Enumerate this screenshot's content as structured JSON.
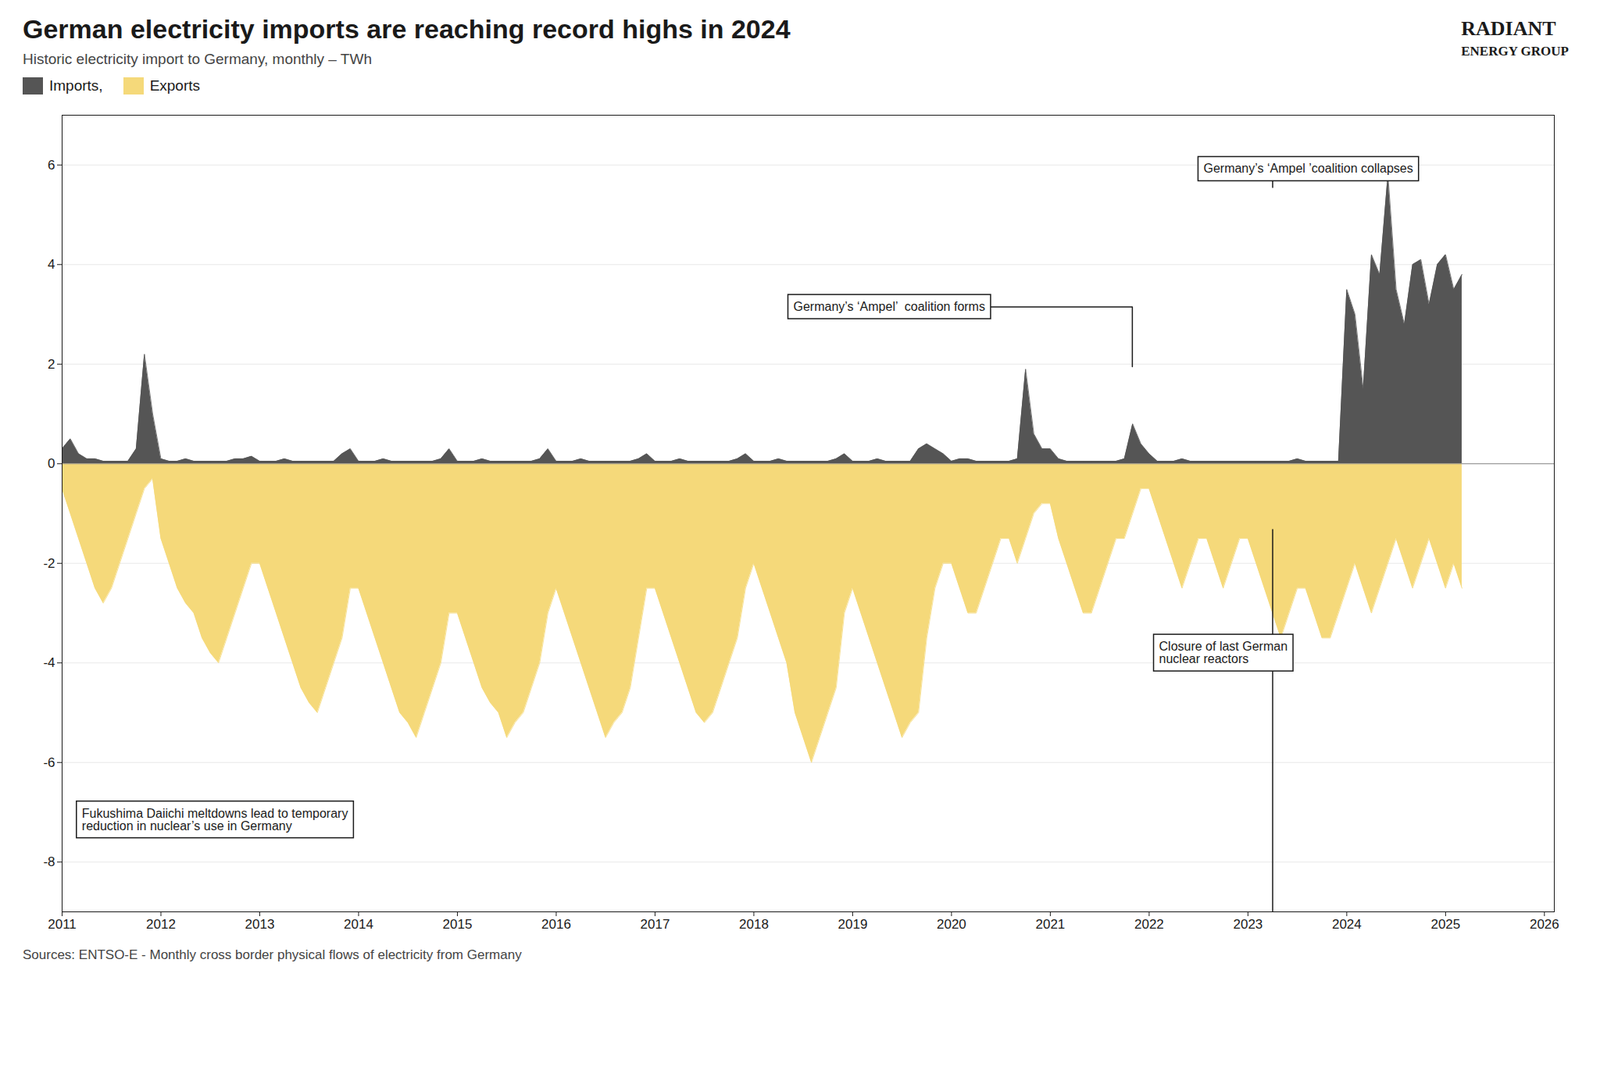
{
  "chart_data": {
    "type": "area",
    "title": "German electricity imports are reaching record highs in 2024",
    "subtitle": "Historic electricity import to Germany, monthly – TWh",
    "source": "Sources: ENTSO-E - Monthly cross border physical flows of electricity from Germany",
    "branding": [
      "RADIANT",
      "ENERGY GROUP"
    ],
    "legend": "top-left",
    "grid": "y",
    "xlim": [
      2011,
      2026.1
    ],
    "xticks": [
      2011,
      2012,
      2013,
      2014,
      2015,
      2016,
      2017,
      2018,
      2019,
      2020,
      2021,
      2022,
      2023,
      2024,
      2025,
      2026
    ],
    "ylim": [
      -9,
      7
    ],
    "yticks": [
      -8,
      -6,
      -4,
      -2,
      0,
      2,
      4,
      6
    ],
    "x": [
      2011,
      2011.0833,
      2011.1667,
      2011.25,
      2011.3333,
      2011.4167,
      2011.5,
      2011.5833,
      2011.6667,
      2011.75,
      2011.8333,
      2011.9167,
      2012,
      2012.0833,
      2012.1667,
      2012.25,
      2012.3333,
      2012.4167,
      2012.5,
      2012.5833,
      2012.6667,
      2012.75,
      2012.8333,
      2012.9167,
      2013,
      2013.0833,
      2013.1667,
      2013.25,
      2013.3333,
      2013.4167,
      2013.5,
      2013.5833,
      2013.6667,
      2013.75,
      2013.8333,
      2013.9167,
      2014,
      2014.0833,
      2014.1667,
      2014.25,
      2014.3333,
      2014.4167,
      2014.5,
      2014.5833,
      2014.6667,
      2014.75,
      2014.8333,
      2014.9167,
      2015,
      2015.0833,
      2015.1667,
      2015.25,
      2015.3333,
      2015.4167,
      2015.5,
      2015.5833,
      2015.6667,
      2015.75,
      2015.8333,
      2015.9167,
      2016,
      2016.0833,
      2016.1667,
      2016.25,
      2016.3333,
      2016.4167,
      2016.5,
      2016.5833,
      2016.6667,
      2016.75,
      2016.8333,
      2016.9167,
      2017,
      2017.0833,
      2017.1667,
      2017.25,
      2017.3333,
      2017.4167,
      2017.5,
      2017.5833,
      2017.6667,
      2017.75,
      2017.8333,
      2017.9167,
      2018,
      2018.0833,
      2018.1667,
      2018.25,
      2018.3333,
      2018.4167,
      2018.5,
      2018.5833,
      2018.6667,
      2018.75,
      2018.8333,
      2018.9167,
      2019,
      2019.0833,
      2019.1667,
      2019.25,
      2019.3333,
      2019.4167,
      2019.5,
      2019.5833,
      2019.6667,
      2019.75,
      2019.8333,
      2019.9167,
      2020,
      2020.0833,
      2020.1667,
      2020.25,
      2020.3333,
      2020.4167,
      2020.5,
      2020.5833,
      2020.6667,
      2020.75,
      2020.8333,
      2020.9167,
      2021,
      2021.0833,
      2021.1667,
      2021.25,
      2021.3333,
      2021.4167,
      2021.5,
      2021.5833,
      2021.6667,
      2021.75,
      2021.8333,
      2021.9167,
      2022,
      2022.0833,
      2022.1667,
      2022.25,
      2022.3333,
      2022.4167,
      2022.5,
      2022.5833,
      2022.6667,
      2022.75,
      2022.8333,
      2022.9167,
      2023,
      2023.0833,
      2023.1667,
      2023.25,
      2023.3333,
      2023.4167,
      2023.5,
      2023.5833,
      2023.6667,
      2023.75,
      2023.8333,
      2023.9167,
      2024,
      2024.0833,
      2024.1667,
      2024.25,
      2024.3333,
      2024.4167,
      2024.5,
      2024.5833,
      2024.6667,
      2024.75,
      2024.8333,
      2024.9167,
      2025,
      2025.0833,
      2025.1667
    ],
    "series": [
      {
        "name": "Imports,",
        "color": "#555555",
        "values": [
          0.3,
          0.5,
          0.2,
          0.1,
          0.1,
          0.05,
          0.05,
          0.05,
          0.05,
          0.3,
          2.2,
          1.0,
          0.1,
          0.05,
          0.05,
          0.1,
          0.05,
          0.05,
          0.05,
          0.05,
          0.05,
          0.1,
          0.1,
          0.15,
          0.05,
          0.05,
          0.05,
          0.1,
          0.05,
          0.05,
          0.05,
          0.05,
          0.05,
          0.05,
          0.2,
          0.3,
          0.05,
          0.05,
          0.05,
          0.1,
          0.05,
          0.05,
          0.05,
          0.05,
          0.05,
          0.05,
          0.1,
          0.3,
          0.05,
          0.05,
          0.05,
          0.1,
          0.05,
          0.05,
          0.05,
          0.05,
          0.05,
          0.05,
          0.1,
          0.3,
          0.05,
          0.05,
          0.05,
          0.1,
          0.05,
          0.05,
          0.05,
          0.05,
          0.05,
          0.05,
          0.1,
          0.2,
          0.05,
          0.05,
          0.05,
          0.1,
          0.05,
          0.05,
          0.05,
          0.05,
          0.05,
          0.05,
          0.1,
          0.2,
          0.05,
          0.05,
          0.05,
          0.1,
          0.05,
          0.05,
          0.05,
          0.05,
          0.05,
          0.05,
          0.1,
          0.2,
          0.05,
          0.05,
          0.05,
          0.1,
          0.05,
          0.05,
          0.05,
          0.05,
          0.3,
          0.4,
          0.3,
          0.2,
          0.05,
          0.1,
          0.1,
          0.05,
          0.05,
          0.05,
          0.05,
          0.05,
          0.1,
          1.9,
          0.6,
          0.3,
          0.3,
          0.1,
          0.05,
          0.05,
          0.05,
          0.05,
          0.05,
          0.05,
          0.05,
          0.1,
          0.8,
          0.4,
          0.2,
          0.05,
          0.05,
          0.05,
          0.1,
          0.05,
          0.05,
          0.05,
          0.05,
          0.05,
          0.05,
          0.05,
          0.05,
          0.05,
          0.05,
          0.05,
          0.05,
          0.05,
          0.1,
          0.05,
          0.05,
          0.05,
          0.05,
          0.05,
          3.5,
          3.0,
          1.5,
          4.2,
          3.8,
          5.8,
          3.5,
          2.8,
          4.0,
          4.1,
          3.2,
          4.0,
          4.2,
          3.5,
          3.8
        ]
      },
      {
        "name": "Exports",
        "color": "#f5d97a",
        "values": [
          -0.5,
          -1.0,
          -1.5,
          -2.0,
          -2.5,
          -2.8,
          -2.5,
          -2.0,
          -1.5,
          -1.0,
          -0.5,
          -0.3,
          -1.5,
          -2.0,
          -2.5,
          -2.8,
          -3.0,
          -3.5,
          -3.8,
          -4.0,
          -3.5,
          -3.0,
          -2.5,
          -2.0,
          -2.0,
          -2.5,
          -3.0,
          -3.5,
          -4.0,
          -4.5,
          -4.8,
          -5.0,
          -4.5,
          -4.0,
          -3.5,
          -2.5,
          -2.5,
          -3.0,
          -3.5,
          -4.0,
          -4.5,
          -5.0,
          -5.2,
          -5.5,
          -5.0,
          -4.5,
          -4.0,
          -3.0,
          -3.0,
          -3.5,
          -4.0,
          -4.5,
          -4.8,
          -5.0,
          -5.5,
          -5.2,
          -5.0,
          -4.5,
          -4.0,
          -3.0,
          -2.5,
          -3.0,
          -3.5,
          -4.0,
          -4.5,
          -5.0,
          -5.5,
          -5.2,
          -5.0,
          -4.5,
          -3.5,
          -2.5,
          -2.5,
          -3.0,
          -3.5,
          -4.0,
          -4.5,
          -5.0,
          -5.2,
          -5.0,
          -4.5,
          -4.0,
          -3.5,
          -2.5,
          -2.0,
          -2.5,
          -3.0,
          -3.5,
          -4.0,
          -5.0,
          -5.5,
          -6.0,
          -5.5,
          -5.0,
          -4.5,
          -3.0,
          -2.5,
          -3.0,
          -3.5,
          -4.0,
          -4.5,
          -5.0,
          -5.5,
          -5.2,
          -5.0,
          -3.5,
          -2.5,
          -2.0,
          -2.0,
          -2.5,
          -3.0,
          -3.0,
          -2.5,
          -2.0,
          -1.5,
          -1.5,
          -2.0,
          -1.5,
          -1.0,
          -0.8,
          -0.8,
          -1.5,
          -2.0,
          -2.5,
          -3.0,
          -3.0,
          -2.5,
          -2.0,
          -1.5,
          -1.5,
          -1.0,
          -0.5,
          -0.5,
          -1.0,
          -1.5,
          -2.0,
          -2.5,
          -2.0,
          -1.5,
          -1.5,
          -2.0,
          -2.5,
          -2.0,
          -1.5,
          -1.5,
          -2.0,
          -2.5,
          -3.0,
          -3.5,
          -3.0,
          -2.5,
          -2.5,
          -3.0,
          -3.5,
          -3.5,
          -3.0,
          -2.5,
          -2.0,
          -2.5,
          -3.0,
          -2.5,
          -2.0,
          -1.5,
          -2.0,
          -2.5,
          -2.0,
          -1.5,
          -2.0,
          -2.5,
          -2.0,
          -2.5
        ]
      }
    ],
    "annotations": [
      {
        "text": "Fukushima Daiichi meltdowns lead to temporary\nreduction in nuclear’s use in Germany",
        "x": 2011.2,
        "y": -7.15
      },
      {
        "text": "Germany’s ‘Ampel’  coalition forms",
        "x": 2018.4,
        "y": 3.15,
        "target": [
          2021.83,
          1.95
        ]
      },
      {
        "text": "Germany’s ‘Ampel ’coalition collapses",
        "x": 2022.55,
        "y": 5.92,
        "target": [
          2023.25,
          5.55
        ]
      },
      {
        "text": "Closure of last German\nnuclear reactors",
        "x": 2022.1,
        "y": -3.8,
        "rule": {
          "x": 2023.25,
          "y1": -9,
          "y2": -1.32
        }
      }
    ]
  }
}
